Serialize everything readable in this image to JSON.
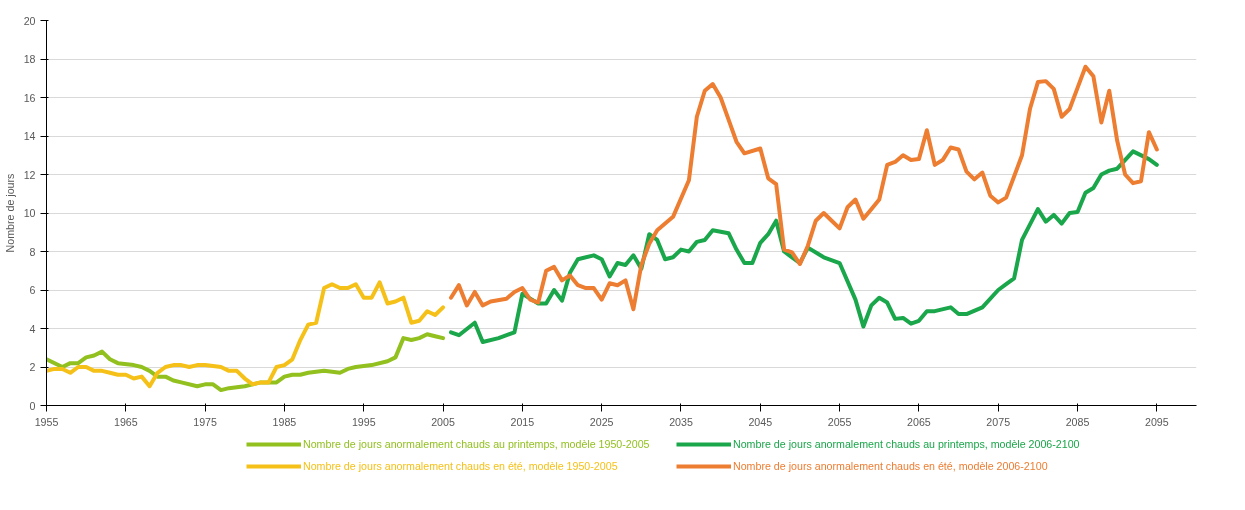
{
  "chart_data": {
    "type": "line",
    "ylabel": "Nombre de jours",
    "xlim": [
      1955,
      2100
    ],
    "xticks": [
      1955,
      1965,
      1975,
      1985,
      1995,
      2005,
      2015,
      2025,
      2035,
      2045,
      2055,
      2065,
      2075,
      2085,
      2095
    ],
    "ylim": [
      0,
      20
    ],
    "yticks": [
      0,
      2,
      4,
      6,
      8,
      10,
      12,
      14,
      16,
      18,
      20
    ],
    "grid": "y",
    "legend": "bottom",
    "marker": "none",
    "line_style": "solid",
    "series": [
      {
        "name": "Nombre de jours anormalement chauds au printemps, modèle 1950-2005",
        "color": "#92c01f",
        "x": [
          1955,
          1957,
          1958,
          1959,
          1960,
          1961,
          1962,
          1963,
          1964,
          1966,
          1967,
          1968,
          1969,
          1970,
          1971,
          1972,
          1974,
          1975,
          1976,
          1977,
          1978,
          1980,
          1982,
          1984,
          1985,
          1986,
          1987,
          1988,
          1990,
          1992,
          1993,
          1994,
          1996,
          1998,
          1999,
          2000,
          2001,
          2002,
          2003,
          2004,
          2005
        ],
        "values": [
          2.4,
          2.0,
          2.2,
          2.2,
          2.5,
          2.6,
          2.8,
          2.4,
          2.2,
          2.1,
          2.0,
          1.8,
          1.5,
          1.5,
          1.3,
          1.2,
          1.0,
          1.1,
          1.1,
          0.8,
          0.9,
          1.0,
          1.2,
          1.2,
          1.5,
          1.6,
          1.6,
          1.7,
          1.8,
          1.7,
          1.9,
          2.0,
          2.1,
          2.3,
          2.5,
          3.5,
          3.4,
          3.5,
          3.7,
          3.6,
          3.5
        ]
      },
      {
        "name": "Nombre de jours anormalement chauds au printemps, modèle 2006-2100",
        "color": "#1aa64a",
        "x": [
          2006,
          2007,
          2009,
          2010,
          2012,
          2014,
          2015,
          2017,
          2018,
          2019,
          2020,
          2021,
          2022,
          2024,
          2025,
          2026,
          2027,
          2028,
          2029,
          2030,
          2031,
          2032,
          2033,
          2034,
          2035,
          2036,
          2037,
          2038,
          2039,
          2041,
          2042,
          2043,
          2044,
          2045,
          2046,
          2047,
          2048,
          2049,
          2050,
          2051,
          2053,
          2055,
          2057,
          2058,
          2059,
          2060,
          2061,
          2062,
          2063,
          2064,
          2065,
          2066,
          2067,
          2069,
          2070,
          2071,
          2073,
          2075,
          2076,
          2077,
          2078,
          2080,
          2081,
          2082,
          2083,
          2084,
          2085,
          2086,
          2087,
          2088,
          2089,
          2090,
          2092,
          2094,
          2095
        ],
        "values": [
          3.8,
          3.65,
          4.3,
          3.3,
          3.5,
          3.8,
          5.8,
          5.3,
          5.3,
          6.0,
          5.45,
          6.9,
          7.6,
          7.8,
          7.6,
          6.7,
          7.4,
          7.3,
          7.8,
          7.1,
          8.9,
          8.6,
          7.6,
          7.7,
          8.1,
          8.0,
          8.5,
          8.6,
          9.1,
          8.95,
          8.1,
          7.4,
          7.4,
          8.45,
          8.9,
          9.6,
          8.0,
          7.7,
          7.4,
          8.2,
          7.7,
          7.4,
          5.5,
          4.1,
          5.2,
          5.6,
          5.35,
          4.5,
          4.55,
          4.25,
          4.4,
          4.9,
          4.9,
          5.1,
          4.75,
          4.75,
          5.1,
          6.0,
          6.3,
          6.6,
          8.6,
          10.2,
          9.55,
          9.9,
          9.45,
          10.0,
          10.05,
          11.05,
          11.3,
          12.0,
          12.2,
          12.3,
          13.2,
          12.8,
          12.5
        ]
      },
      {
        "name": "Nombre de jours anormalement chauds en été, modèle 1950-2005",
        "color": "#f5c118",
        "x": [
          1955,
          1956,
          1957,
          1958,
          1959,
          1960,
          1961,
          1962,
          1963,
          1964,
          1965,
          1966,
          1967,
          1968,
          1969,
          1970,
          1971,
          1972,
          1973,
          1974,
          1975,
          1976,
          1977,
          1978,
          1979,
          1980,
          1981,
          1982,
          1983,
          1984,
          1985,
          1986,
          1987,
          1988,
          1989,
          1990,
          1991,
          1992,
          1993,
          1994,
          1995,
          1996,
          1997,
          1998,
          1999,
          2000,
          2001,
          2002,
          2003,
          2004,
          2005
        ],
        "values": [
          1.8,
          1.9,
          1.9,
          1.7,
          2.0,
          2.0,
          1.8,
          1.8,
          1.7,
          1.6,
          1.6,
          1.4,
          1.5,
          1.0,
          1.7,
          2.0,
          2.1,
          2.1,
          2.0,
          2.1,
          2.1,
          2.05,
          2.0,
          1.8,
          1.8,
          1.4,
          1.1,
          1.2,
          1.2,
          2.0,
          2.1,
          2.4,
          3.4,
          4.2,
          4.3,
          6.1,
          6.3,
          6.1,
          6.1,
          6.3,
          5.6,
          5.6,
          6.4,
          5.3,
          5.4,
          5.6,
          4.3,
          4.4,
          4.9,
          4.7,
          5.1
        ]
      },
      {
        "name": "Nombre de jours anormalement chauds en été, modèle 2006-2100",
        "color": "#ed7d31",
        "x": [
          2006,
          2007,
          2008,
          2009,
          2010,
          2011,
          2013,
          2014,
          2015,
          2016,
          2017,
          2018,
          2019,
          2020,
          2021,
          2022,
          2023,
          2024,
          2025,
          2026,
          2027,
          2028,
          2029,
          2030,
          2031,
          2032,
          2034,
          2036,
          2037,
          2038,
          2039,
          2040,
          2041,
          2042,
          2043,
          2045,
          2046,
          2047,
          2048,
          2049,
          2050,
          2051,
          2052,
          2053,
          2054,
          2055,
          2056,
          2057,
          2058,
          2059,
          2060,
          2061,
          2062,
          2063,
          2064,
          2065,
          2066,
          2067,
          2068,
          2069,
          2070,
          2071,
          2072,
          2073,
          2074,
          2075,
          2076,
          2078,
          2079,
          2080,
          2081,
          2082,
          2083,
          2084,
          2085,
          2086,
          2087,
          2088,
          2089,
          2090,
          2091,
          2092,
          2093,
          2094,
          2095
        ],
        "values": [
          5.6,
          6.25,
          5.2,
          5.9,
          5.2,
          5.4,
          5.55,
          5.9,
          6.1,
          5.5,
          5.35,
          7.0,
          7.2,
          6.5,
          6.75,
          6.25,
          6.1,
          6.1,
          5.5,
          6.35,
          6.25,
          6.5,
          5.0,
          7.3,
          8.4,
          9.1,
          9.8,
          11.7,
          15.0,
          16.35,
          16.7,
          16.0,
          14.85,
          13.7,
          13.1,
          13.35,
          11.8,
          11.5,
          8.1,
          7.95,
          7.35,
          8.3,
          9.6,
          10.0,
          9.6,
          9.2,
          10.3,
          10.7,
          9.7,
          10.2,
          10.7,
          12.5,
          12.65,
          13.0,
          12.75,
          12.8,
          14.3,
          12.5,
          12.75,
          13.4,
          13.3,
          12.15,
          11.75,
          12.1,
          10.9,
          10.55,
          10.8,
          13.0,
          15.4,
          16.8,
          16.85,
          16.45,
          15.0,
          15.4,
          16.5,
          17.6,
          17.1,
          14.7,
          16.35,
          13.75,
          12.0,
          11.55,
          11.65,
          14.2,
          13.3
        ]
      }
    ]
  }
}
